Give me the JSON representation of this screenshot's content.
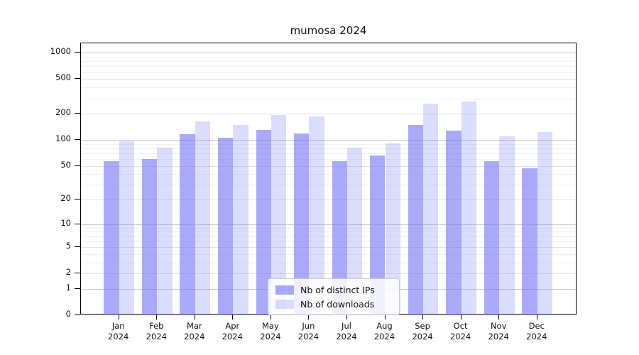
{
  "title": "mumosa 2024",
  "chart_data": {
    "type": "bar",
    "title": "mumosa 2024",
    "scale": "symlog (log(1+x))",
    "grid": true,
    "legend_position": "bottom-center",
    "categories": [
      "Jan",
      "Feb",
      "Mar",
      "Apr",
      "May",
      "Jun",
      "Jul",
      "Aug",
      "Sep",
      "Oct",
      "Nov",
      "Dec"
    ],
    "year": "2024",
    "series": [
      {
        "name": "Nb of distinct IPs",
        "color": "rgba(118,118,244,0.62)",
        "values": [
          57,
          60,
          116,
          107,
          130,
          118,
          57,
          66,
          148,
          127,
          57,
          47
        ]
      },
      {
        "name": "Nb of downloads",
        "color": "rgba(118,118,244,0.26)",
        "values": [
          97,
          82,
          165,
          150,
          192,
          185,
          82,
          92,
          262,
          278,
          110,
          123
        ]
      }
    ],
    "yticks": [
      0,
      1,
      2,
      5,
      10,
      20,
      50,
      100,
      200,
      500,
      1000
    ],
    "ylim": [
      0,
      1283
    ],
    "xlabel": "",
    "ylabel": ""
  }
}
